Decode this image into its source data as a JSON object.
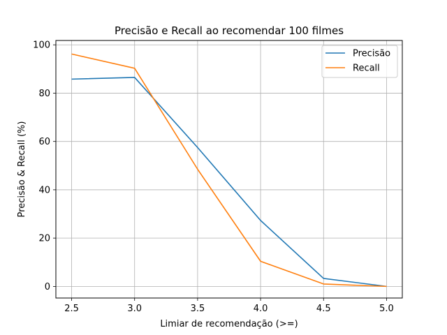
{
  "chart_data": {
    "type": "line",
    "title": "Precisão e Recall ao recomendar 100 filmes",
    "xlabel": "Limiar de recomendação (>=)",
    "ylabel": "Precisão & Recall (%)",
    "x": [
      2.5,
      3.0,
      3.5,
      4.0,
      4.5,
      5.0
    ],
    "x_ticks": [
      "2.5",
      "3.0",
      "3.5",
      "4.0",
      "4.5",
      "5.0"
    ],
    "y_ticks": [
      "0",
      "20",
      "40",
      "60",
      "80",
      "100"
    ],
    "xlim": [
      2.375,
      5.125
    ],
    "ylim": [
      -4.8,
      101.8
    ],
    "grid": true,
    "legend_position": "top-right",
    "series": [
      {
        "name": "Precisão",
        "color": "#1f77b4",
        "values": [
          85.8,
          86.5,
          57.5,
          27.3,
          3.3,
          0.0
        ]
      },
      {
        "name": "Recall",
        "color": "#ff7f0e",
        "values": [
          96.2,
          90.3,
          48.5,
          10.4,
          1.0,
          0.0
        ]
      }
    ]
  }
}
